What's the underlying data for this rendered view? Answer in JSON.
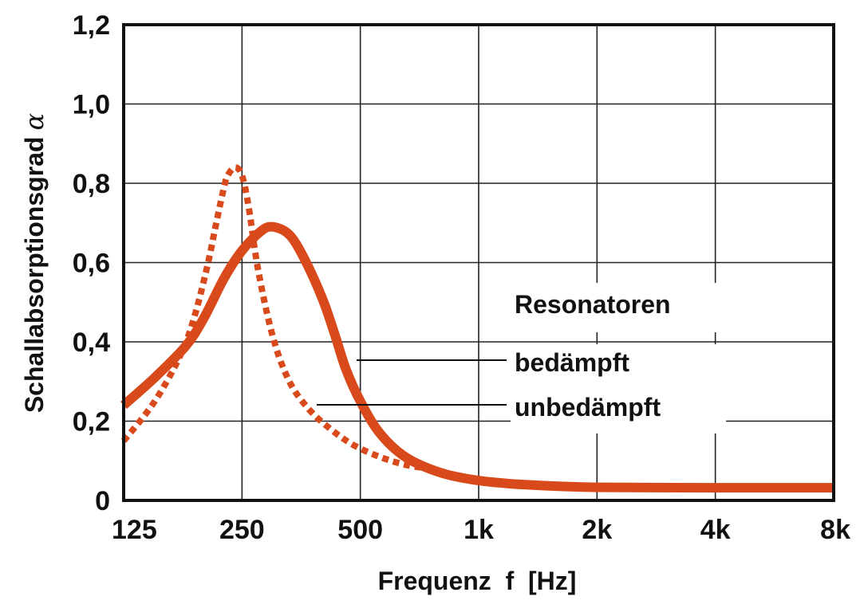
{
  "chart_data": {
    "type": "line",
    "ylabel": "Schallabsorptionsgrad",
    "ylabel_symbol": "α",
    "xlabel": "Frequenz  f  [Hz]",
    "x_scale": "log2 (octave)",
    "x_ticks": [
      125,
      250,
      500,
      1000,
      2000,
      4000,
      8000
    ],
    "x_tick_labels": [
      "125",
      "250",
      "500",
      "1k",
      "2k",
      "4k",
      "8k"
    ],
    "xlim": [
      125,
      8000
    ],
    "ylim": [
      0,
      1.2
    ],
    "y_ticks": [
      0,
      0.2,
      0.4,
      0.6,
      0.8,
      1.0,
      1.2
    ],
    "y_tick_labels": [
      "0",
      "0,2",
      "0,4",
      "0,6",
      "0,8",
      "1,0",
      "1,2"
    ],
    "grid": true,
    "legend_title": "Resonatoren",
    "color": "#d84a1b",
    "series": [
      {
        "name": "bedämpft",
        "style": "solid",
        "x": [
          125,
          150,
          180,
          200,
          225,
          250,
          280,
          300,
          330,
          360,
          400,
          430,
          460,
          500,
          560,
          650,
          800,
          1000,
          1300,
          2000,
          4000,
          8000
        ],
        "y": [
          0.24,
          0.31,
          0.39,
          0.46,
          0.56,
          0.63,
          0.68,
          0.69,
          0.67,
          0.61,
          0.51,
          0.42,
          0.33,
          0.25,
          0.17,
          0.11,
          0.07,
          0.05,
          0.04,
          0.033,
          0.032,
          0.032
        ]
      },
      {
        "name": "unbedämpft",
        "style": "dashed",
        "x": [
          125,
          150,
          175,
          190,
          205,
          215,
          225,
          230,
          240,
          250,
          260,
          275,
          300,
          330,
          370,
          420,
          480,
          560,
          650,
          750
        ],
        "y": [
          0.15,
          0.25,
          0.37,
          0.47,
          0.6,
          0.7,
          0.79,
          0.82,
          0.84,
          0.82,
          0.74,
          0.58,
          0.41,
          0.3,
          0.23,
          0.18,
          0.14,
          0.11,
          0.09,
          0.08
        ]
      }
    ]
  }
}
